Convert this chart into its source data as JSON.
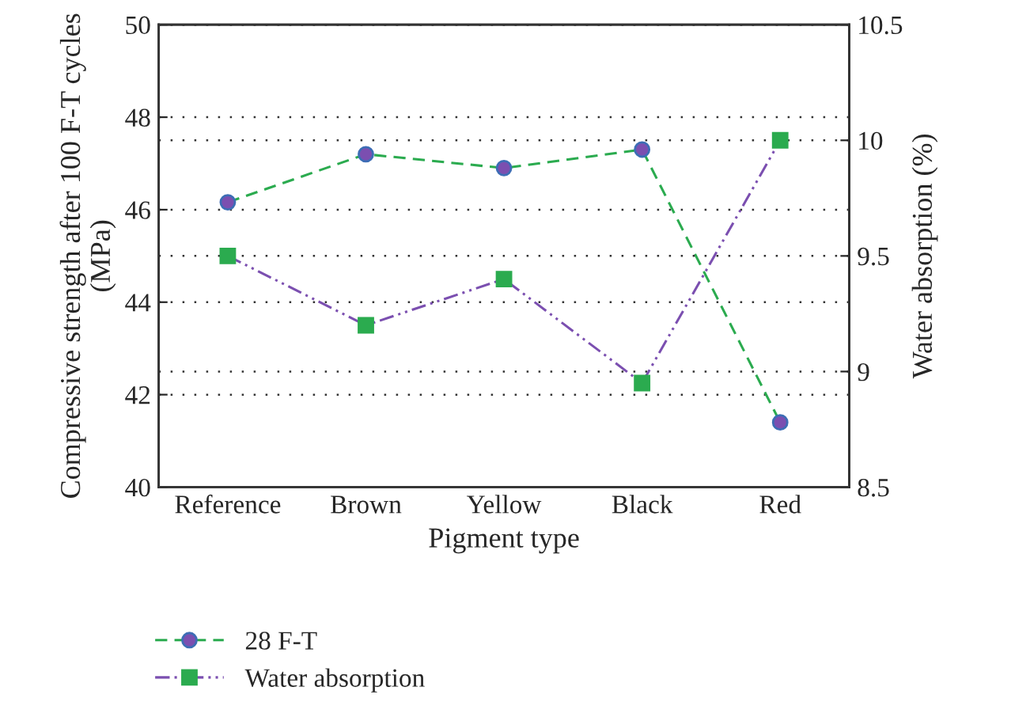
{
  "chart_data": {
    "type": "line",
    "xlabel": "Pigment type",
    "ylabel": "Compressive strength after 100 F-T cycles (MPa)",
    "y2label": "Water absorption (%)",
    "categories": [
      "Reference",
      "Brown",
      "Yellow",
      "Black",
      "Red"
    ],
    "series": [
      {
        "name": "28 F-T",
        "color": "#2bab4f",
        "marker": "circle",
        "line_style": "dashed",
        "values": [
          46.16,
          47.2,
          46.9,
          47.3,
          41.4
        ]
      },
      {
        "name": "Water absorption",
        "color": "#7b4fb0",
        "marker": "square",
        "line_style": "dashdot",
        "axis": "y2",
        "values": [
          9.5,
          9.2,
          9.4,
          8.95,
          10.0
        ]
      }
    ],
    "ylim": [
      40,
      50
    ],
    "yticks": [
      40,
      42,
      44,
      46,
      48,
      50
    ],
    "y2lim": [
      8.5,
      10.5
    ],
    "y2ticks": [
      8.5,
      9,
      9.5,
      10,
      10.5
    ],
    "grid": "y",
    "legend": "bottom"
  }
}
